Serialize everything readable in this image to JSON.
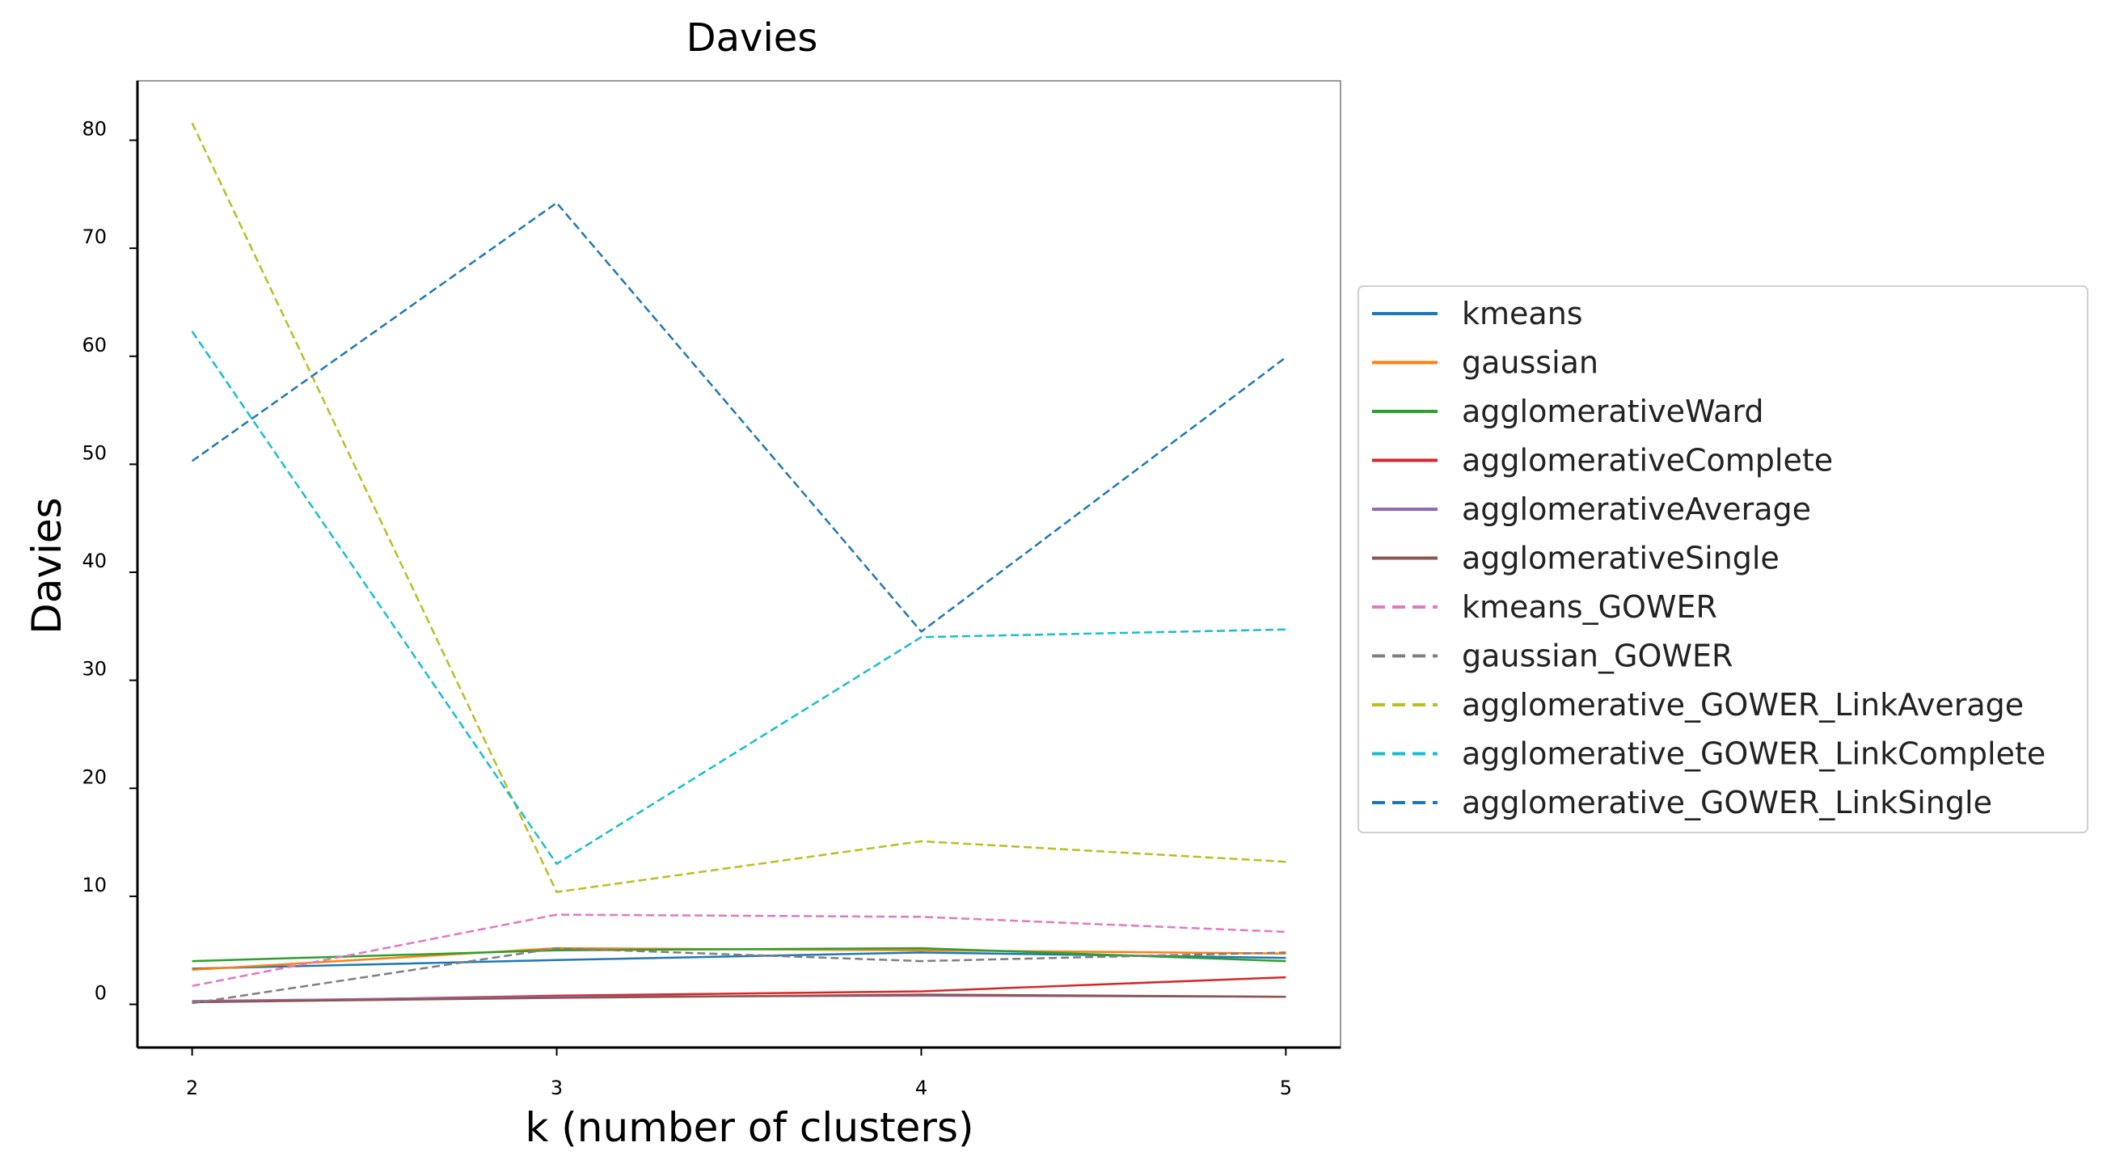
{
  "chart_data": {
    "type": "line",
    "title": "Davies",
    "xlabel": "k (number of clusters)",
    "ylabel": "Davies",
    "x": [
      2,
      3,
      4,
      5
    ],
    "x_tick_labels": [
      "2",
      "3",
      "4",
      "5"
    ],
    "y_ticks": [
      0,
      10,
      20,
      30,
      40,
      50,
      60,
      70,
      80
    ],
    "y_tick_labels": [
      "0",
      "10",
      "20",
      "30",
      "40",
      "50",
      "60",
      "70",
      "80"
    ],
    "xlim": [
      1.85,
      5.15
    ],
    "ylim": [
      -4,
      85.5
    ],
    "grid": false,
    "legend_position": "right",
    "series": [
      {
        "name": "kmeans",
        "values": [
          3.3,
          4.1,
          4.8,
          4.3
        ],
        "color": "#1f77b4",
        "dash": "solid"
      },
      {
        "name": "gaussian",
        "values": [
          3.2,
          5.2,
          5.0,
          4.7
        ],
        "color": "#ff7f0e",
        "dash": "solid"
      },
      {
        "name": "agglomerativeWard",
        "values": [
          4.0,
          5.0,
          5.2,
          4.0
        ],
        "color": "#2ca02c",
        "dash": "solid"
      },
      {
        "name": "agglomerativeComplete",
        "values": [
          0.2,
          0.8,
          1.2,
          2.5
        ],
        "color": "#d62728",
        "dash": "solid"
      },
      {
        "name": "agglomerativeAverage",
        "values": [
          0.3,
          0.7,
          0.8,
          0.7
        ],
        "color": "#9467bd",
        "dash": "solid"
      },
      {
        "name": "agglomerativeSingle",
        "values": [
          0.2,
          0.6,
          0.9,
          0.7
        ],
        "color": "#8c564b",
        "dash": "solid"
      },
      {
        "name": "kmeans_GOWER",
        "values": [
          1.7,
          8.3,
          8.1,
          6.7
        ],
        "color": "#e377c2",
        "dash": "dashed"
      },
      {
        "name": "gaussian_GOWER",
        "values": [
          0.1,
          5.2,
          4.0,
          4.8
        ],
        "color": "#7f7f7f",
        "dash": "dashed"
      },
      {
        "name": "agglomerative_GOWER_LinkAverage",
        "values": [
          81.6,
          10.4,
          15.1,
          13.2
        ],
        "color": "#bcbd22",
        "dash": "dashed"
      },
      {
        "name": "agglomerative_GOWER_LinkComplete",
        "values": [
          62.3,
          13.0,
          34.0,
          34.7
        ],
        "color": "#17becf",
        "dash": "dashed"
      },
      {
        "name": "agglomerative_GOWER_LinkSingle",
        "values": [
          50.3,
          74.2,
          34.5,
          59.9
        ],
        "color": "#1f77b4",
        "dash": "dashed"
      }
    ]
  }
}
